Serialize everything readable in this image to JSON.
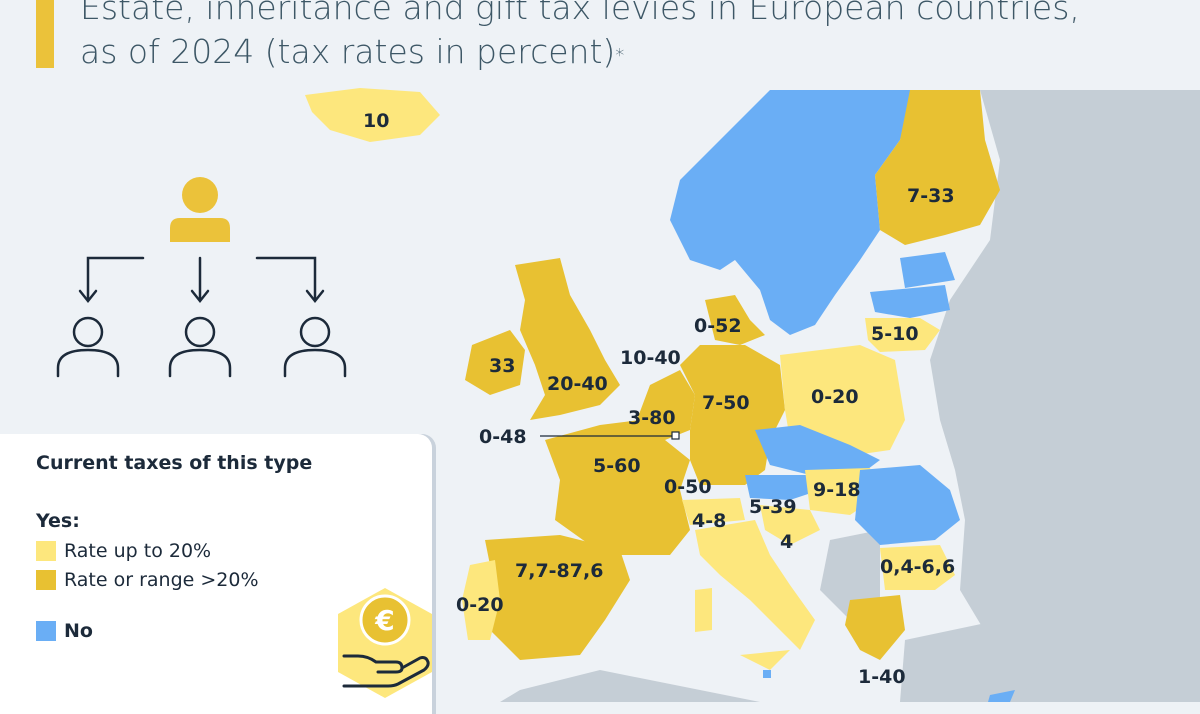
{
  "title": {
    "line1": "Estate, inheritance and gift tax levies in European countries,",
    "line2": "as of 2024 (tax rates in percent)",
    "footnote_mark": "*"
  },
  "colors": {
    "rate_up_to_20": "#fde77d",
    "rate_over_20": "#e8c132",
    "no_tax": "#6aaef5",
    "non_eu_land": "#c5ced6",
    "sea": "#eef2f6",
    "text": "#1c2a3a"
  },
  "legend": {
    "title": "Current taxes of this type",
    "yes_label": "Yes:",
    "items": [
      {
        "label": "Rate up to 20%",
        "color": "#fde77d"
      },
      {
        "label": "Rate or range >20%",
        "color": "#e8c132"
      }
    ],
    "no_label": "No",
    "no_color": "#6aaef5"
  },
  "map_labels": {
    "iceland": "10",
    "finland": "7-33",
    "denmark": "0-52",
    "latvia_lithuania": "5-10",
    "ireland": "33",
    "uk": "20-40",
    "netherlands": "10-40",
    "germany": "7-50",
    "poland": "0-20",
    "belgium": "3-80",
    "luxembourg": "0-48",
    "france": "5-60",
    "austria_liecht": "0-50",
    "hungary": "9-18",
    "slovenia": "5-39",
    "switzerland": "4-8",
    "croatia": "4",
    "bulgaria": "0,4-6,6",
    "spain": "7,7-87,6",
    "portugal": "0-20",
    "greece": "1-40"
  },
  "icons": [
    "person-hierarchy-icon",
    "euro-coin-hand-icon"
  ]
}
